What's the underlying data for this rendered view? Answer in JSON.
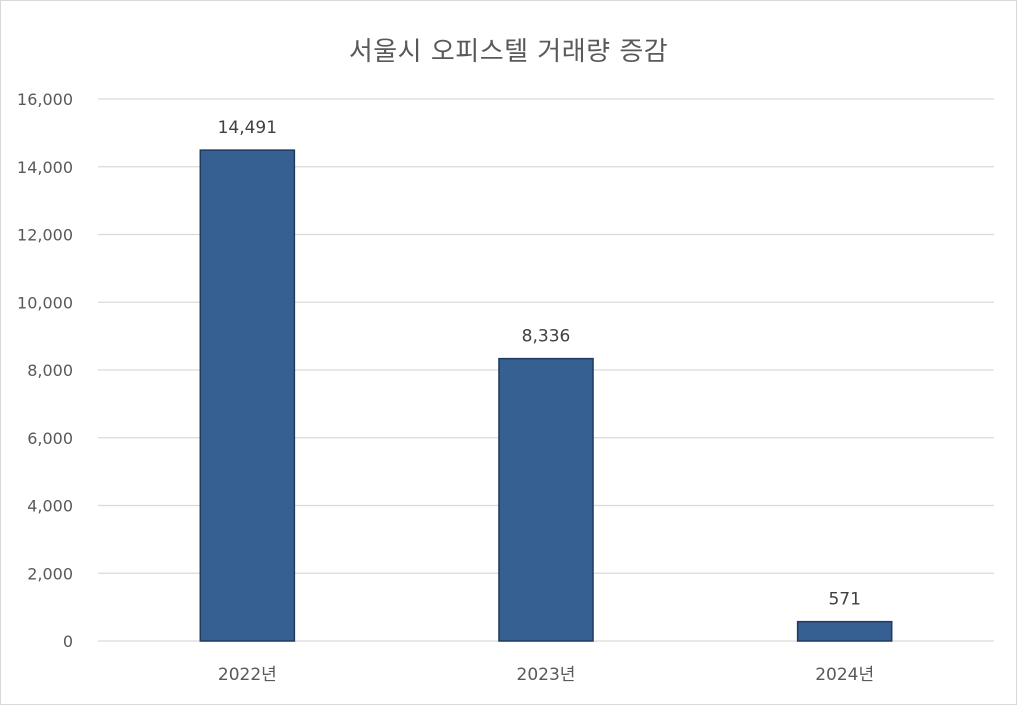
{
  "chart_data": {
    "type": "bar",
    "title": "서울시 오피스텔 거래량 증감",
    "xlabel": "",
    "ylabel": "",
    "categories": [
      "2022년",
      "2023년",
      "2024년"
    ],
    "values": [
      14491,
      8336,
      571
    ],
    "data_labels": [
      "14,491",
      "8,336",
      "571"
    ],
    "ylim": [
      0,
      16000
    ],
    "y_ticks": [
      0,
      2000,
      4000,
      6000,
      8000,
      10000,
      12000,
      14000,
      16000
    ],
    "y_tick_labels": [
      "0",
      "2,000",
      "4,000",
      "6,000",
      "8,000",
      "10,000",
      "12,000",
      "14,000",
      "16,000"
    ],
    "grid": true,
    "legend": "none",
    "colors": {
      "bar_fill": "#376092",
      "bar_stroke": "#1f3a5f",
      "grid": "#d9d9d9"
    }
  }
}
